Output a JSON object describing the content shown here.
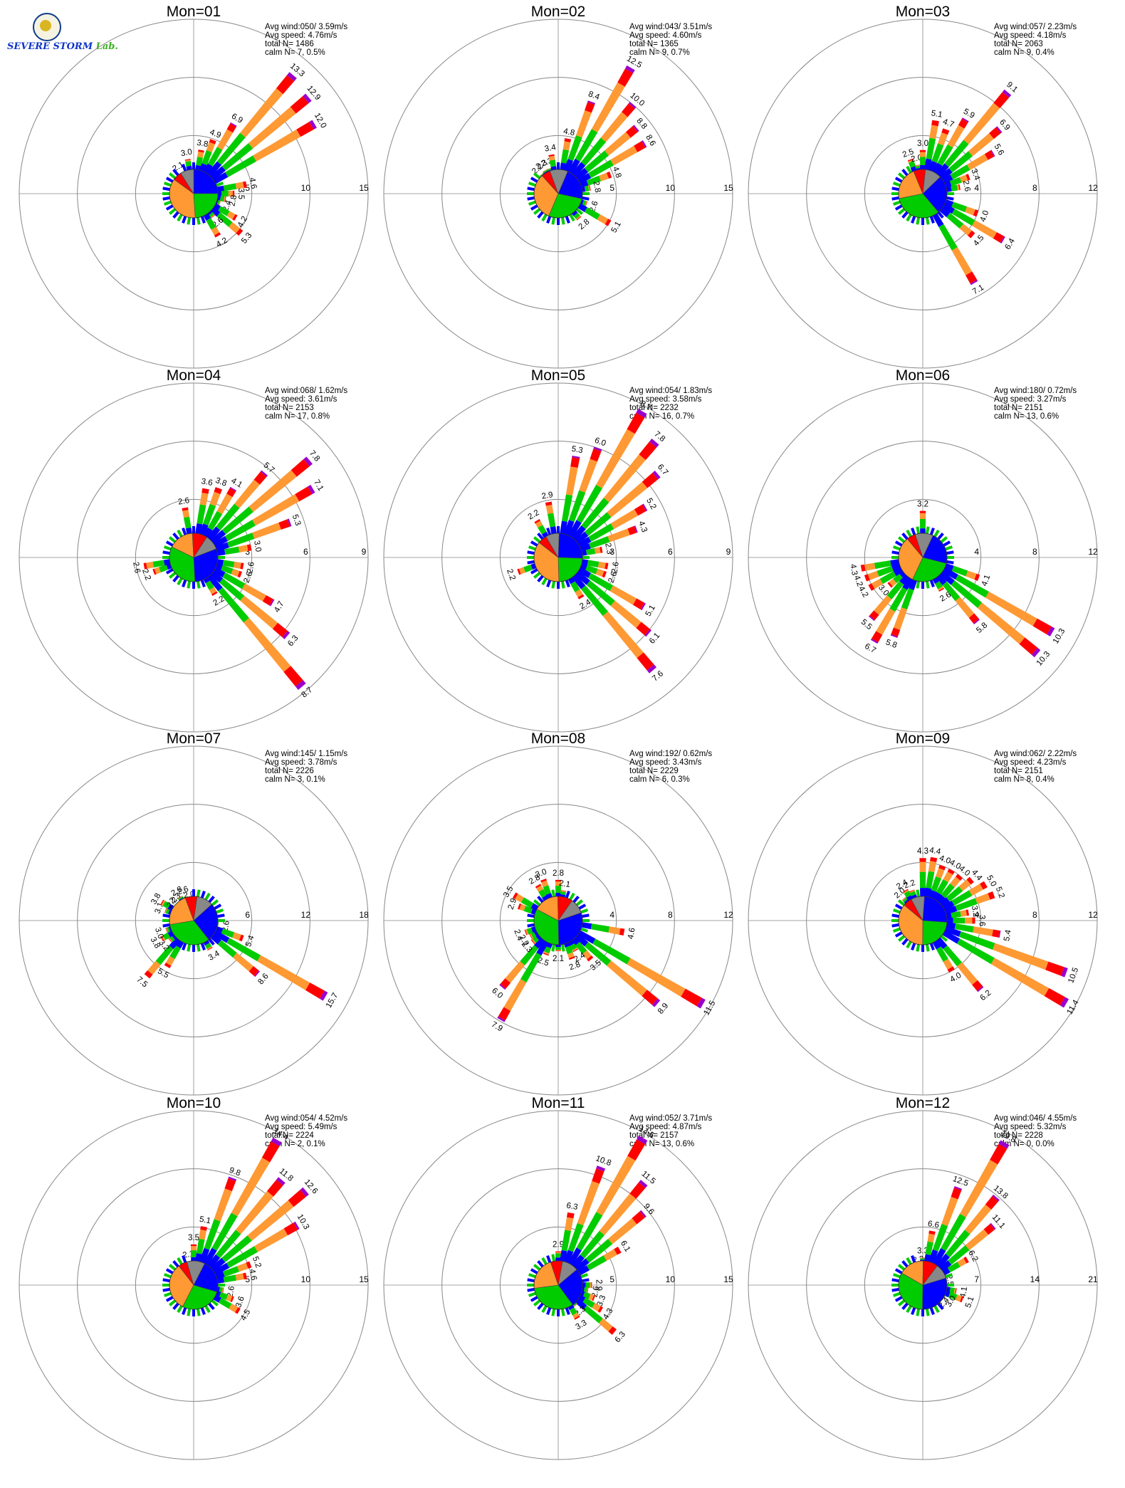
{
  "logo": {
    "name": "severe-storm-lab-logo",
    "text_1": "SEVERE",
    "text_2": "STORM",
    "text_3": "Lab."
  },
  "colors": {
    "speed_bins": [
      "#0000ff",
      "#00cc00",
      "#ff9933",
      "#ff0000",
      "#9900cc"
    ],
    "calm_pie_slices": [
      "#0000ff",
      "#00cc00",
      "#ff9933",
      "#ff0000",
      "#888888"
    ],
    "grid": "#888888",
    "axis": "#888888"
  },
  "chart_data": [
    {
      "type": "polar-bar",
      "title": "Mon=01",
      "stats": [
        "Avg wind:050/ 3.59m/s",
        "Avg speed: 4.76m/s",
        "total N=      1486",
        "calm N=     7,   0.5%"
      ],
      "rings": [
        5,
        10,
        15
      ],
      "ring_labels": [
        "5",
        "10",
        "15"
      ],
      "petals": [
        {
          "dir": 330,
          "value": 2.1
        },
        {
          "dir": 350,
          "value": 3.0
        },
        {
          "dir": 10,
          "value": 3.8
        },
        {
          "dir": 20,
          "value": 4.9
        },
        {
          "dir": 30,
          "value": 6.9
        },
        {
          "dir": 40,
          "value": 13.3
        },
        {
          "dir": 50,
          "value": 12.9
        },
        {
          "dir": 60,
          "value": 12.0
        },
        {
          "dir": 80,
          "value": 4.6
        },
        {
          "dir": 90,
          "value": 3.5
        },
        {
          "dir": 100,
          "value": 2.8
        },
        {
          "dir": 110,
          "value": 2.4
        },
        {
          "dir": 120,
          "value": 4.2
        },
        {
          "dir": 130,
          "value": 5.3
        },
        {
          "dir": 140,
          "value": 2.6
        },
        {
          "dir": 150,
          "value": 4.2
        }
      ]
    },
    {
      "type": "polar-bar",
      "title": "Mon=02",
      "stats": [
        "Avg wind:043/ 3.51m/s",
        "Avg speed: 4.60m/s",
        "total N=      1365",
        "calm N=     9,   0.7%"
      ],
      "rings": [
        5,
        10,
        15
      ],
      "ring_labels": [
        "5",
        "10",
        "15"
      ],
      "petals": [
        {
          "dir": 320,
          "value": 2.2
        },
        {
          "dir": 330,
          "value": 2.3
        },
        {
          "dir": 340,
          "value": 2.3
        },
        {
          "dir": 350,
          "value": 3.4
        },
        {
          "dir": 10,
          "value": 4.8
        },
        {
          "dir": 20,
          "value": 8.4
        },
        {
          "dir": 30,
          "value": 12.5
        },
        {
          "dir": 40,
          "value": 10.0
        },
        {
          "dir": 50,
          "value": 8.8
        },
        {
          "dir": 60,
          "value": 8.6
        },
        {
          "dir": 70,
          "value": 4.8
        },
        {
          "dir": 80,
          "value": 2.8
        },
        {
          "dir": 110,
          "value": 2.6
        },
        {
          "dir": 120,
          "value": 5.1
        },
        {
          "dir": 140,
          "value": 2.8
        }
      ]
    },
    {
      "type": "polar-bar",
      "title": "Mon=03",
      "stats": [
        "Avg wind:057/ 2.23m/s",
        "Avg speed: 4.18m/s",
        "total N=      2063",
        "calm N=     9,   0.4%"
      ],
      "rings": [
        4,
        8,
        12
      ],
      "ring_labels": [
        "4",
        "8",
        "12"
      ],
      "petals": [
        {
          "dir": 340,
          "value": 2.5
        },
        {
          "dir": 350,
          "value": 2.0
        },
        {
          "dir": 0,
          "value": 3.0
        },
        {
          "dir": 10,
          "value": 5.1
        },
        {
          "dir": 20,
          "value": 4.7
        },
        {
          "dir": 30,
          "value": 5.9
        },
        {
          "dir": 40,
          "value": 9.1
        },
        {
          "dir": 50,
          "value": 6.9
        },
        {
          "dir": 60,
          "value": 5.6
        },
        {
          "dir": 70,
          "value": 3.4
        },
        {
          "dir": 80,
          "value": 2.6
        },
        {
          "dir": 110,
          "value": 4.0
        },
        {
          "dir": 120,
          "value": 6.4
        },
        {
          "dir": 130,
          "value": 4.5
        },
        {
          "dir": 150,
          "value": 7.1
        }
      ]
    },
    {
      "type": "polar-bar",
      "title": "Mon=04",
      "stats": [
        "Avg wind:068/ 1.62m/s",
        "Avg speed: 3.61m/s",
        "total N=      2153",
        "calm N=    17,   0.8%"
      ],
      "rings": [
        3,
        6,
        9
      ],
      "ring_labels": [
        "3",
        "6",
        "9"
      ],
      "petals": [
        {
          "dir": 350,
          "value": 2.6
        },
        {
          "dir": 10,
          "value": 3.6
        },
        {
          "dir": 20,
          "value": 3.8
        },
        {
          "dir": 30,
          "value": 4.1
        },
        {
          "dir": 40,
          "value": 5.7
        },
        {
          "dir": 50,
          "value": 7.8
        },
        {
          "dir": 60,
          "value": 7.1
        },
        {
          "dir": 70,
          "value": 5.3
        },
        {
          "dir": 80,
          "value": 3.0
        },
        {
          "dir": 100,
          "value": 2.6
        },
        {
          "dir": 110,
          "value": 2.6
        },
        {
          "dir": 120,
          "value": 4.7
        },
        {
          "dir": 130,
          "value": 6.3
        },
        {
          "dir": 140,
          "value": 8.7
        },
        {
          "dir": 150,
          "value": 2.2
        },
        {
          "dir": 250,
          "value": 2.2
        },
        {
          "dir": 260,
          "value": 2.6
        }
      ]
    },
    {
      "type": "polar-bar",
      "title": "Mon=05",
      "stats": [
        "Avg wind:054/ 1.83m/s",
        "Avg speed: 3.58m/s",
        "total N=      2232",
        "calm N=    16,   0.7%"
      ],
      "rings": [
        3,
        6,
        9
      ],
      "ring_labels": [
        "3",
        "6",
        "9"
      ],
      "petals": [
        {
          "dir": 330,
          "value": 2.2
        },
        {
          "dir": 350,
          "value": 2.9
        },
        {
          "dir": 10,
          "value": 5.3
        },
        {
          "dir": 20,
          "value": 6.0
        },
        {
          "dir": 30,
          "value": 8.7
        },
        {
          "dir": 40,
          "value": 7.8
        },
        {
          "dir": 50,
          "value": 6.7
        },
        {
          "dir": 60,
          "value": 5.2
        },
        {
          "dir": 70,
          "value": 4.3
        },
        {
          "dir": 80,
          "value": 2.3
        },
        {
          "dir": 100,
          "value": 2.6
        },
        {
          "dir": 110,
          "value": 2.6
        },
        {
          "dir": 120,
          "value": 5.1
        },
        {
          "dir": 130,
          "value": 6.1
        },
        {
          "dir": 140,
          "value": 7.6
        },
        {
          "dir": 150,
          "value": 2.4
        },
        {
          "dir": 250,
          "value": 2.2
        }
      ]
    },
    {
      "type": "polar-bar",
      "title": "Mon=06",
      "stats": [
        "Avg wind:180/ 0.72m/s",
        "Avg speed: 3.27m/s",
        "total N=      2151",
        "calm N=    13,   0.6%"
      ],
      "rings": [
        4,
        8,
        12
      ],
      "ring_labels": [
        "4",
        "8",
        "12"
      ],
      "petals": [
        {
          "dir": 0,
          "value": 3.2
        },
        {
          "dir": 110,
          "value": 4.1
        },
        {
          "dir": 120,
          "value": 10.3
        },
        {
          "dir": 130,
          "value": 10.3
        },
        {
          "dir": 140,
          "value": 5.8
        },
        {
          "dir": 150,
          "value": 2.6
        },
        {
          "dir": 200,
          "value": 5.8
        },
        {
          "dir": 210,
          "value": 6.7
        },
        {
          "dir": 220,
          "value": 5.5
        },
        {
          "dir": 230,
          "value": 3.0
        },
        {
          "dir": 240,
          "value": 4.2
        },
        {
          "dir": 250,
          "value": 4.2
        },
        {
          "dir": 260,
          "value": 4.3
        }
      ]
    },
    {
      "type": "polar-bar",
      "title": "Mon=07",
      "stats": [
        "Avg wind:145/ 1.15m/s",
        "Avg speed: 3.78m/s",
        "total N=      2226",
        "calm N=     3,   0.1%"
      ],
      "rings": [
        6,
        12,
        18
      ],
      "ring_labels": [
        "6",
        "12",
        "18"
      ],
      "petals": [
        {
          "dir": 100,
          "value": 2.6
        },
        {
          "dir": 110,
          "value": 5.4
        },
        {
          "dir": 120,
          "value": 15.7
        },
        {
          "dir": 130,
          "value": 8.6
        },
        {
          "dir": 150,
          "value": 3.4
        },
        {
          "dir": 210,
          "value": 5.5
        },
        {
          "dir": 220,
          "value": 7.5
        },
        {
          "dir": 230,
          "value": 3.2
        },
        {
          "dir": 240,
          "value": 3.8
        },
        {
          "dir": 250,
          "value": 3.0
        },
        {
          "dir": 290,
          "value": 3.1
        },
        {
          "dir": 300,
          "value": 3.8
        },
        {
          "dir": 310,
          "value": 2.2
        },
        {
          "dir": 320,
          "value": 2.3
        },
        {
          "dir": 330,
          "value": 2.8
        },
        {
          "dir": 340,
          "value": 2.6
        },
        {
          "dir": 350,
          "value": 2.0
        }
      ]
    },
    {
      "type": "polar-bar",
      "title": "Mon=08",
      "stats": [
        "Avg wind:192/ 0.62m/s",
        "Avg speed: 3.43m/s",
        "total N=      2229",
        "calm N=     6,   0.3%"
      ],
      "rings": [
        4,
        8,
        12
      ],
      "ring_labels": [
        "4",
        "8",
        "12"
      ],
      "petals": [
        {
          "dir": 0,
          "value": 2.8
        },
        {
          "dir": 10,
          "value": 2.1
        },
        {
          "dir": 100,
          "value": 4.6
        },
        {
          "dir": 120,
          "value": 11.5
        },
        {
          "dir": 130,
          "value": 8.9
        },
        {
          "dir": 140,
          "value": 3.5
        },
        {
          "dir": 150,
          "value": 2.4
        },
        {
          "dir": 160,
          "value": 2.8
        },
        {
          "dir": 180,
          "value": 2.1
        },
        {
          "dir": 200,
          "value": 2.5
        },
        {
          "dir": 210,
          "value": 7.9
        },
        {
          "dir": 220,
          "value": 6.0
        },
        {
          "dir": 230,
          "value": 2.3
        },
        {
          "dir": 240,
          "value": 2.2
        },
        {
          "dir": 250,
          "value": 2.4
        },
        {
          "dir": 290,
          "value": 2.9
        },
        {
          "dir": 300,
          "value": 3.5
        },
        {
          "dir": 330,
          "value": 2.8
        },
        {
          "dir": 340,
          "value": 3.0
        }
      ]
    },
    {
      "type": "polar-bar",
      "title": "Mon=09",
      "stats": [
        "Avg wind:062/ 2.22m/s",
        "Avg speed: 4.23m/s",
        "total N=      2151",
        "calm N=     8,   0.4%"
      ],
      "rings": [
        4,
        8,
        12
      ],
      "ring_labels": [
        "4",
        "8",
        "12"
      ],
      "petals": [
        {
          "dir": 320,
          "value": 2.0
        },
        {
          "dir": 330,
          "value": 2.4
        },
        {
          "dir": 340,
          "value": 2.2
        },
        {
          "dir": 0,
          "value": 4.3
        },
        {
          "dir": 10,
          "value": 4.4
        },
        {
          "dir": 20,
          "value": 4.0
        },
        {
          "dir": 30,
          "value": 4.0
        },
        {
          "dir": 40,
          "value": 4.0
        },
        {
          "dir": 50,
          "value": 4.4
        },
        {
          "dir": 60,
          "value": 5.0
        },
        {
          "dir": 70,
          "value": 5.2
        },
        {
          "dir": 80,
          "value": 3.2
        },
        {
          "dir": 90,
          "value": 3.6
        },
        {
          "dir": 100,
          "value": 5.4
        },
        {
          "dir": 110,
          "value": 10.5
        },
        {
          "dir": 120,
          "value": 11.4
        },
        {
          "dir": 140,
          "value": 6.2
        },
        {
          "dir": 150,
          "value": 4.0
        }
      ]
    },
    {
      "type": "polar-bar",
      "title": "Mon=10",
      "stats": [
        "Avg wind:054/ 4.52m/s",
        "Avg speed: 5.49m/s",
        "total N=      2224",
        "calm N=     2,   0.1%"
      ],
      "rings": [
        5,
        10,
        15
      ],
      "ring_labels": [
        "5",
        "10",
        "15"
      ],
      "petals": [
        {
          "dir": 350,
          "value": 2.1
        },
        {
          "dir": 0,
          "value": 3.5
        },
        {
          "dir": 10,
          "value": 5.1
        },
        {
          "dir": 20,
          "value": 9.8
        },
        {
          "dir": 30,
          "value": 14.4
        },
        {
          "dir": 40,
          "value": 11.8
        },
        {
          "dir": 50,
          "value": 12.6
        },
        {
          "dir": 60,
          "value": 10.3
        },
        {
          "dir": 70,
          "value": 5.2
        },
        {
          "dir": 80,
          "value": 4.6
        },
        {
          "dir": 100,
          "value": 2.6
        },
        {
          "dir": 110,
          "value": 3.6
        },
        {
          "dir": 120,
          "value": 4.5
        }
      ]
    },
    {
      "type": "polar-bar",
      "title": "Mon=11",
      "stats": [
        "Avg wind:052/ 3.71m/s",
        "Avg speed: 4.87m/s",
        "total N=      2157",
        "calm N=    13,   0.6%"
      ],
      "rings": [
        5,
        10,
        15
      ],
      "ring_labels": [
        "5",
        "10",
        "15"
      ],
      "petals": [
        {
          "dir": 0,
          "value": 2.9
        },
        {
          "dir": 10,
          "value": 6.3
        },
        {
          "dir": 20,
          "value": 10.8
        },
        {
          "dir": 30,
          "value": 14.6
        },
        {
          "dir": 40,
          "value": 11.5
        },
        {
          "dir": 50,
          "value": 9.6
        },
        {
          "dir": 60,
          "value": 6.1
        },
        {
          "dir": 90,
          "value": 2.9
        },
        {
          "dir": 100,
          "value": 2.6
        },
        {
          "dir": 110,
          "value": 3.3
        },
        {
          "dir": 120,
          "value": 4.3
        },
        {
          "dir": 130,
          "value": 6.3
        },
        {
          "dir": 140,
          "value": 2.3
        },
        {
          "dir": 150,
          "value": 3.3
        }
      ]
    },
    {
      "type": "polar-bar",
      "title": "Mon=12",
      "stats": [
        "Avg wind:046/ 4.55m/s",
        "Avg speed: 5.32m/s",
        "total N=      2228",
        "calm N=     0,   0.0%"
      ],
      "rings": [
        7,
        14,
        21
      ],
      "ring_labels": [
        "7",
        "14",
        "21"
      ],
      "petals": [
        {
          "dir": 350,
          "value": 2.3
        },
        {
          "dir": 0,
          "value": 3.3
        },
        {
          "dir": 10,
          "value": 6.6
        },
        {
          "dir": 20,
          "value": 12.5
        },
        {
          "dir": 30,
          "value": 19.8
        },
        {
          "dir": 40,
          "value": 13.8
        },
        {
          "dir": 50,
          "value": 11.1
        },
        {
          "dir": 60,
          "value": 6.2
        },
        {
          "dir": 80,
          "value": 2.5
        },
        {
          "dir": 100,
          "value": 4.1
        },
        {
          "dir": 110,
          "value": 5.1
        },
        {
          "dir": 120,
          "value": 3.0
        },
        {
          "dir": 130,
          "value": 2.4
        }
      ]
    }
  ]
}
